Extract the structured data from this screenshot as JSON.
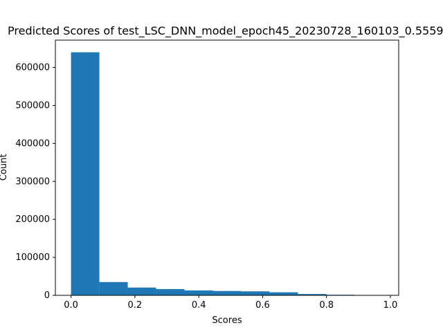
{
  "chart_data": {
    "type": "bar",
    "title": "Predicted Scores of test_LSC_DNN_model_epoch45_20230728_160103_0.5559",
    "xlabel": "Scores",
    "ylabel": "Count",
    "bin_edges": [
      0.0,
      0.0888,
      0.1776,
      0.2664,
      0.3552,
      0.444,
      0.5328,
      0.6216,
      0.7104,
      0.7992,
      0.888,
      0.9768
    ],
    "values": [
      640000,
      35000,
      20500,
      16500,
      13000,
      11500,
      10500,
      8000,
      3500,
      1500,
      0
    ],
    "xlim": [
      -0.049,
      1.026
    ],
    "ylim": [
      0,
      672000
    ],
    "xticks": [
      0.0,
      0.2,
      0.4,
      0.6,
      0.8,
      1.0
    ],
    "xtick_labels": [
      "0.0",
      "0.2",
      "0.4",
      "0.6",
      "0.8",
      "1.0"
    ],
    "yticks": [
      0,
      100000,
      200000,
      300000,
      400000,
      500000,
      600000
    ],
    "ytick_labels": [
      "0",
      "100000",
      "200000",
      "300000",
      "400000",
      "500000",
      "600000"
    ],
    "bar_color": "#1f77b4",
    "grid": false
  }
}
